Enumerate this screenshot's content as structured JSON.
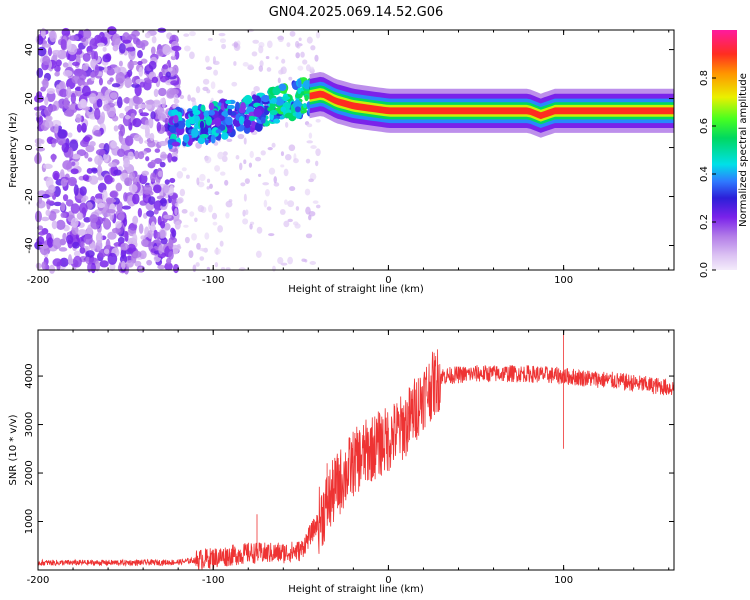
{
  "title": "GN04.2025.069.14.52.G06",
  "chart_data": [
    {
      "type": "heatmap",
      "xlabel": "Height of straight line (km)",
      "ylabel": "Frequency (Hz)",
      "xlim": [
        -200,
        163
      ],
      "ylim": [
        -50,
        48
      ],
      "xticks": [
        -200,
        -100,
        0,
        100
      ],
      "yticks": [
        -40,
        -20,
        0,
        20,
        40
      ],
      "colorbar": {
        "label": "Normalized spectral amplitude",
        "range": [
          0,
          1
        ],
        "ticks": [
          0.0,
          0.2,
          0.4,
          0.6,
          0.8
        ]
      },
      "ridge": {
        "description_points": [
          {
            "x": -115,
            "y": 8
          },
          {
            "x": -90,
            "y": 12
          },
          {
            "x": -70,
            "y": 16
          },
          {
            "x": -55,
            "y": 19
          },
          {
            "x": -45,
            "y": 21
          },
          {
            "x": -38,
            "y": 22
          },
          {
            "x": -30,
            "y": 19
          },
          {
            "x": -20,
            "y": 17
          },
          {
            "x": -10,
            "y": 16
          },
          {
            "x": 0,
            "y": 15
          },
          {
            "x": 50,
            "y": 15
          },
          {
            "x": 80,
            "y": 15
          },
          {
            "x": 87,
            "y": 13
          },
          {
            "x": 95,
            "y": 15
          },
          {
            "x": 163,
            "y": 15
          }
        ]
      }
    },
    {
      "type": "line",
      "xlabel": "Height of straight line (km)",
      "ylabel": "SNR (10 * v/v)",
      "xlim": [
        -200,
        163
      ],
      "ylim": [
        0,
        4950
      ],
      "xticks": [
        -200,
        -100,
        0,
        100
      ],
      "yticks": [
        1000,
        2000,
        3000,
        4000
      ],
      "color": "#ee3333",
      "series_trend": [
        {
          "x": -200,
          "y": 150
        },
        {
          "x": -150,
          "y": 150
        },
        {
          "x": -120,
          "y": 160
        },
        {
          "x": -100,
          "y": 250
        },
        {
          "x": -80,
          "y": 350
        },
        {
          "x": -60,
          "y": 350
        },
        {
          "x": -50,
          "y": 400
        },
        {
          "x": -40,
          "y": 1000
        },
        {
          "x": -30,
          "y": 1700
        },
        {
          "x": -20,
          "y": 2200
        },
        {
          "x": -10,
          "y": 2500
        },
        {
          "x": 0,
          "y": 2700
        },
        {
          "x": 10,
          "y": 3000
        },
        {
          "x": 20,
          "y": 3600
        },
        {
          "x": 30,
          "y": 4000
        },
        {
          "x": 50,
          "y": 4050
        },
        {
          "x": 80,
          "y": 4050
        },
        {
          "x": 100,
          "y": 4000
        },
        {
          "x": 130,
          "y": 3900
        },
        {
          "x": 163,
          "y": 3750
        }
      ],
      "spikes": [
        {
          "x": 100,
          "y": 4950
        },
        {
          "x": 100,
          "y": 2500
        },
        {
          "x": -75,
          "y": 1150
        },
        {
          "x": -35,
          "y": 2200
        }
      ]
    }
  ]
}
